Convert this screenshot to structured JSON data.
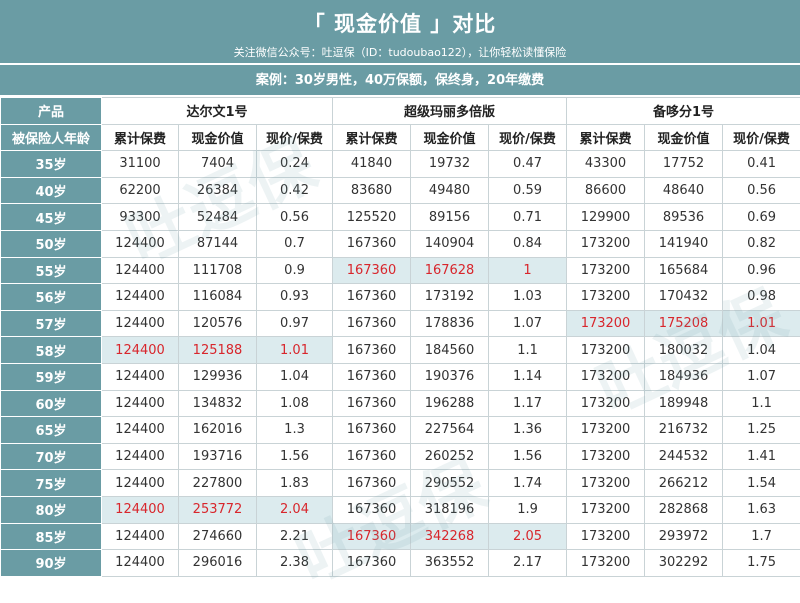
{
  "header": {
    "title": "「 现金价值 」对比",
    "subtitle": "关注微信公众号：吐逗保（ID：tudoubao122），让你轻松读懂保险",
    "case": "案例：30岁男性，40万保额，保终身，20年缴费"
  },
  "table": {
    "product_label": "产品",
    "age_label": "被保险人年龄",
    "products": [
      "达尔文1号",
      "超级玛丽多倍版",
      "备哆分1号"
    ],
    "subheaders": [
      "累计保费",
      "现金价值",
      "现价/保费"
    ],
    "rows": [
      {
        "age": "35岁",
        "v": [
          "31100",
          "7404",
          "0.24",
          "41840",
          "19732",
          "0.47",
          "43300",
          "17752",
          "0.41"
        ],
        "hl": []
      },
      {
        "age": "40岁",
        "v": [
          "62200",
          "26384",
          "0.42",
          "83680",
          "49480",
          "0.59",
          "86600",
          "48640",
          "0.56"
        ],
        "hl": []
      },
      {
        "age": "45岁",
        "v": [
          "93300",
          "52484",
          "0.56",
          "125520",
          "89156",
          "0.71",
          "129900",
          "89536",
          "0.69"
        ],
        "hl": []
      },
      {
        "age": "50岁",
        "v": [
          "124400",
          "87144",
          "0.7",
          "167360",
          "140904",
          "0.84",
          "173200",
          "141940",
          "0.82"
        ],
        "hl": []
      },
      {
        "age": "55岁",
        "v": [
          "124400",
          "111708",
          "0.9",
          "167360",
          "167628",
          "1",
          "173200",
          "165684",
          "0.96"
        ],
        "hl": [
          1
        ]
      },
      {
        "age": "56岁",
        "v": [
          "124400",
          "116084",
          "0.93",
          "167360",
          "173192",
          "1.03",
          "173200",
          "170432",
          "0.98"
        ],
        "hl": []
      },
      {
        "age": "57岁",
        "v": [
          "124400",
          "120576",
          "0.97",
          "167360",
          "178836",
          "1.07",
          "173200",
          "175208",
          "1.01"
        ],
        "hl": [
          2
        ]
      },
      {
        "age": "58岁",
        "v": [
          "124400",
          "125188",
          "1.01",
          "167360",
          "184560",
          "1.1",
          "173200",
          "180032",
          "1.04"
        ],
        "hl": [
          0
        ]
      },
      {
        "age": "59岁",
        "v": [
          "124400",
          "129936",
          "1.04",
          "167360",
          "190376",
          "1.14",
          "173200",
          "184936",
          "1.07"
        ],
        "hl": []
      },
      {
        "age": "60岁",
        "v": [
          "124400",
          "134832",
          "1.08",
          "167360",
          "196288",
          "1.17",
          "173200",
          "189948",
          "1.1"
        ],
        "hl": []
      },
      {
        "age": "65岁",
        "v": [
          "124400",
          "162016",
          "1.3",
          "167360",
          "227564",
          "1.36",
          "173200",
          "216732",
          "1.25"
        ],
        "hl": []
      },
      {
        "age": "70岁",
        "v": [
          "124400",
          "193716",
          "1.56",
          "167360",
          "260252",
          "1.56",
          "173200",
          "244532",
          "1.41"
        ],
        "hl": []
      },
      {
        "age": "75岁",
        "v": [
          "124400",
          "227800",
          "1.83",
          "167360",
          "290552",
          "1.74",
          "173200",
          "266212",
          "1.54"
        ],
        "hl": []
      },
      {
        "age": "80岁",
        "v": [
          "124400",
          "253772",
          "2.04",
          "167360",
          "318196",
          "1.9",
          "173200",
          "282868",
          "1.63"
        ],
        "hl": [
          0
        ]
      },
      {
        "age": "85岁",
        "v": [
          "124400",
          "274660",
          "2.21",
          "167360",
          "342268",
          "2.05",
          "173200",
          "293972",
          "1.7"
        ],
        "hl": [
          1
        ]
      },
      {
        "age": "90岁",
        "v": [
          "124400",
          "296016",
          "2.38",
          "167360",
          "363552",
          "2.17",
          "173200",
          "302292",
          "1.75"
        ],
        "hl": []
      }
    ]
  },
  "watermark_text": "吐逗保"
}
